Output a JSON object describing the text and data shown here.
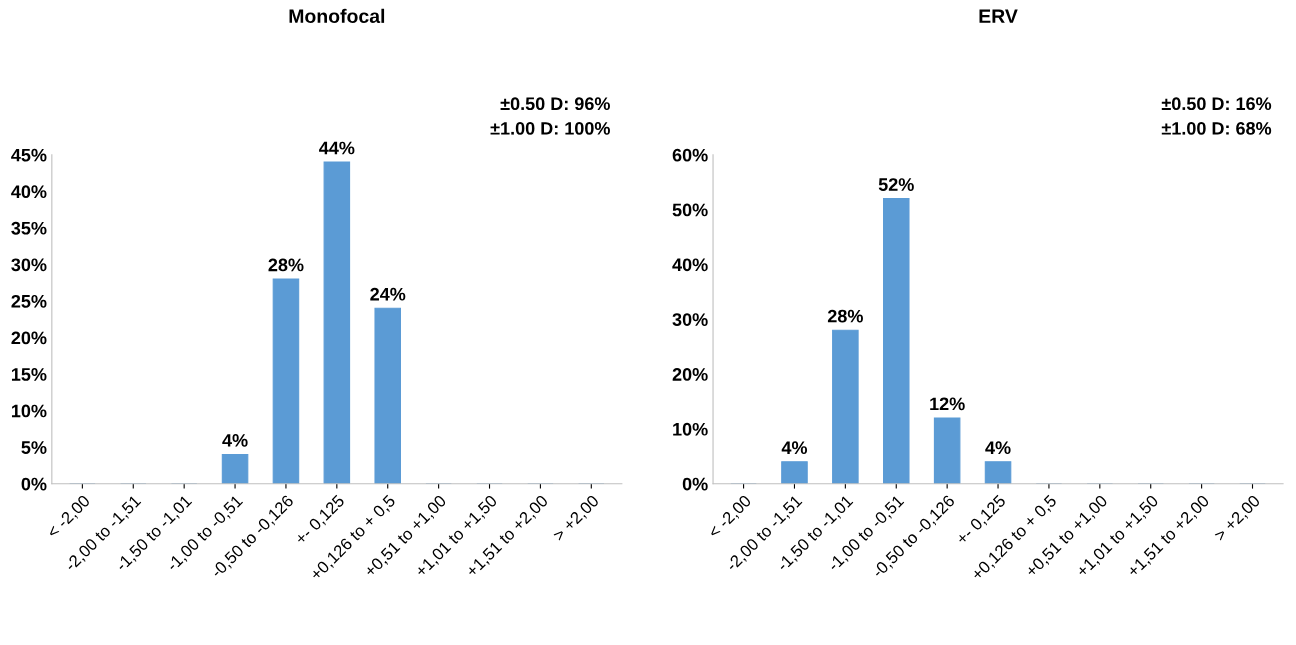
{
  "chart_data": [
    {
      "type": "bar",
      "title": "Monofocal",
      "categories": [
        "< -2,00",
        "-2,00 to -1,51",
        "-1,50 to -1,01",
        "-1,00 to -0,51",
        "-0,50 to -0,126",
        "+- 0,125",
        "+0,126 to + 0,5",
        "+0,51 to +1,00",
        "+1,01 to +1,50",
        "+1,51 to +2,00",
        "> +2,00"
      ],
      "values": [
        0,
        0,
        0,
        4,
        28,
        44,
        24,
        0,
        0,
        0,
        0
      ],
      "value_labels": [
        null,
        null,
        null,
        "4%",
        "28%",
        "44%",
        "24%",
        null,
        null,
        null,
        null
      ],
      "color": "#5b9bd5",
      "ylim": [
        0,
        45
      ],
      "yticks": [
        {
          "value": 0,
          "label": "0%"
        },
        {
          "value": 5,
          "label": "5%"
        },
        {
          "value": 10,
          "label": "10%"
        },
        {
          "value": 15,
          "label": "15%"
        },
        {
          "value": 20,
          "label": "20%"
        },
        {
          "value": 25,
          "label": "25%"
        },
        {
          "value": 30,
          "label": "30%"
        },
        {
          "value": 35,
          "label": "35%"
        },
        {
          "value": 40,
          "label": "40%"
        },
        {
          "value": 45,
          "label": "45%"
        }
      ],
      "annotations": [
        "±0.50 D: 96%\n±1.00 D: 100%"
      ],
      "grid": false,
      "legend": false
    },
    {
      "type": "bar",
      "title": "ERV",
      "categories": [
        "< -2,00",
        "-2,00 to -1,51",
        "-1,50 to -1,01",
        "-1,00 to -0,51",
        "-0,50 to -0,126",
        "+- 0,125",
        "+0,126 to + 0,5",
        "+0,51 to +1,00",
        "+1,01 to +1,50",
        "+1,51 to +2,00",
        "> +2,00"
      ],
      "values": [
        0,
        4,
        28,
        52,
        12,
        4,
        0,
        0,
        0,
        0,
        0
      ],
      "value_labels": [
        null,
        "4%",
        "28%",
        "52%",
        "12%",
        "4%",
        null,
        null,
        null,
        null,
        null
      ],
      "color": "#5b9bd5",
      "ylim": [
        0,
        60
      ],
      "yticks": [
        {
          "value": 0,
          "label": "0%"
        },
        {
          "value": 10,
          "label": "10%"
        },
        {
          "value": 20,
          "label": "20%"
        },
        {
          "value": 30,
          "label": "30%"
        },
        {
          "value": 40,
          "label": "40%"
        },
        {
          "value": 50,
          "label": "50%"
        },
        {
          "value": 60,
          "label": "60%"
        }
      ],
      "annotations": [
        "±0.50 D: 16%\n±1.00 D: 68%"
      ],
      "grid": false,
      "legend": false
    }
  ]
}
